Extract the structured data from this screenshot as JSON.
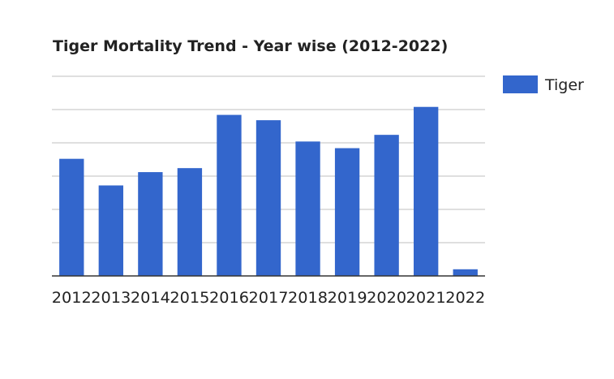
{
  "chart_data": {
    "type": "bar",
    "title": "Tiger Mortality Trend - Year wise (2012-2022)",
    "xlabel": "",
    "ylabel": "",
    "categories": [
      "2012",
      "2013",
      "2014",
      "2015",
      "2016",
      "2017",
      "2018",
      "2019",
      "2020",
      "2021",
      "2022"
    ],
    "series": [
      {
        "name": "Tiger",
        "color": "#3366cc",
        "values": [
          88,
          68,
          78,
          81,
          121,
          117,
          101,
          96,
          106,
          127,
          5
        ]
      }
    ],
    "ylim": [
      0,
      150
    ],
    "grid": true,
    "legend": "right",
    "gridline_color": "#cccccc",
    "baseline_color": "#333333"
  }
}
